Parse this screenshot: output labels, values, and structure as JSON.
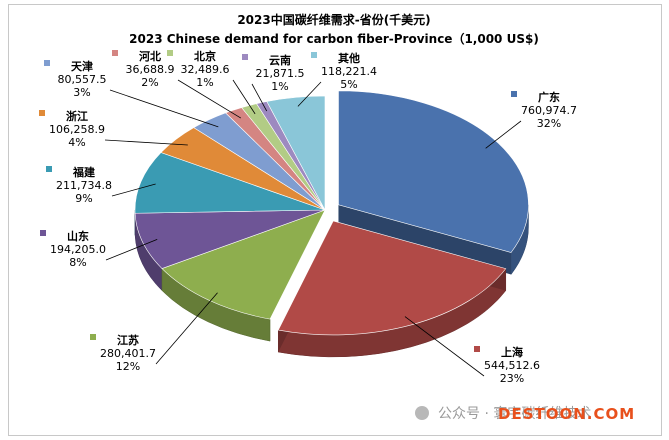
{
  "chart_data": {
    "type": "pie",
    "title": "2023中国碳纤维需求-省份(千美元)",
    "subtitle": "2023 Chinese demand for carbon fiber-Province（1,000 US$)",
    "slices": [
      {
        "name": "广东",
        "value": "760,974.7",
        "percent": "32%",
        "color": "#4a72ad"
      },
      {
        "name": "上海",
        "value": "544,512.6",
        "percent": "23%",
        "color": "#b14a47"
      },
      {
        "name": "江苏",
        "value": "280,401.7",
        "percent": "12%",
        "color": "#8eae4e"
      },
      {
        "name": "山东",
        "value": "194,205.0",
        "percent": "8%",
        "color": "#6e5596"
      },
      {
        "name": "福建",
        "value": "211,734.8",
        "percent": "9%",
        "color": "#3a9bb3"
      },
      {
        "name": "浙江",
        "value": "106,258.9",
        "percent": "4%",
        "color": "#e08a38"
      },
      {
        "name": "天津",
        "value": "80,557.5",
        "percent": "3%",
        "color": "#7f9dd0"
      },
      {
        "name": "河北",
        "value": "36,688.9",
        "percent": "2%",
        "color": "#d48582"
      },
      {
        "name": "北京",
        "value": "32,489.6",
        "percent": "1%",
        "color": "#b2cc85"
      },
      {
        "name": "云南",
        "value": "21,871.5",
        "percent": "1%",
        "color": "#9d8ac0"
      },
      {
        "name": "其他",
        "value": "118,221.4",
        "percent": "5%",
        "color": "#8ac6d8"
      }
    ],
    "legend": "none"
  },
  "watermark": {
    "text": "公众号 · 寰宇碳纤维技术",
    "brand": "DESTOON.COM"
  }
}
